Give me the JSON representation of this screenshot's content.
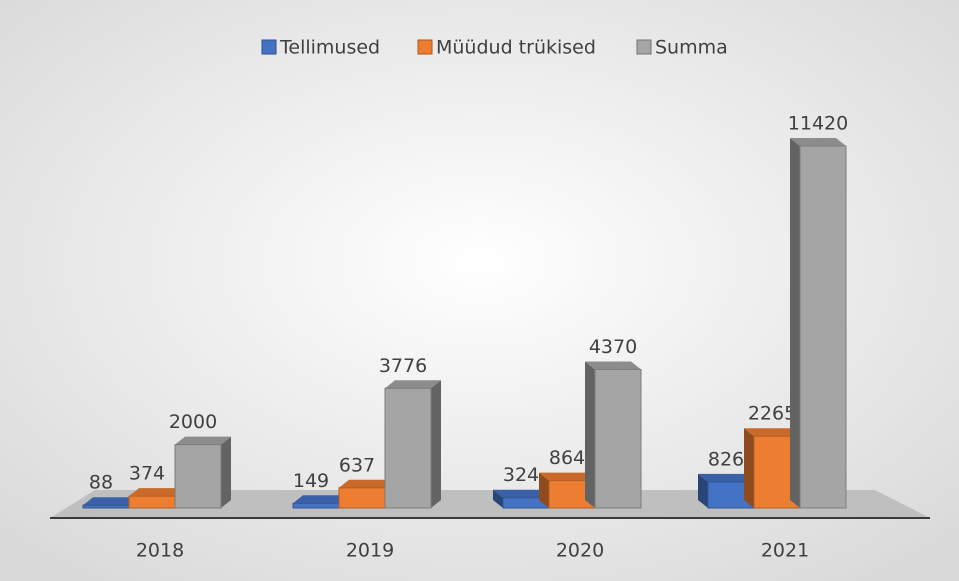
{
  "chart_data": {
    "type": "bar3d",
    "categories": [
      "2018",
      "2019",
      "2020",
      "2021"
    ],
    "series": [
      {
        "name": "Tellimused",
        "color": "#4472c4",
        "values": [
          88,
          149,
          324,
          826
        ]
      },
      {
        "name": "Müüdud trükised",
        "color": "#ed7d31",
        "values": [
          374,
          637,
          864,
          2265
        ]
      },
      {
        "name": "Summa",
        "color": "#a5a5a5",
        "values": [
          2000,
          3776,
          4370,
          11420
        ]
      }
    ],
    "legend": "top"
  }
}
